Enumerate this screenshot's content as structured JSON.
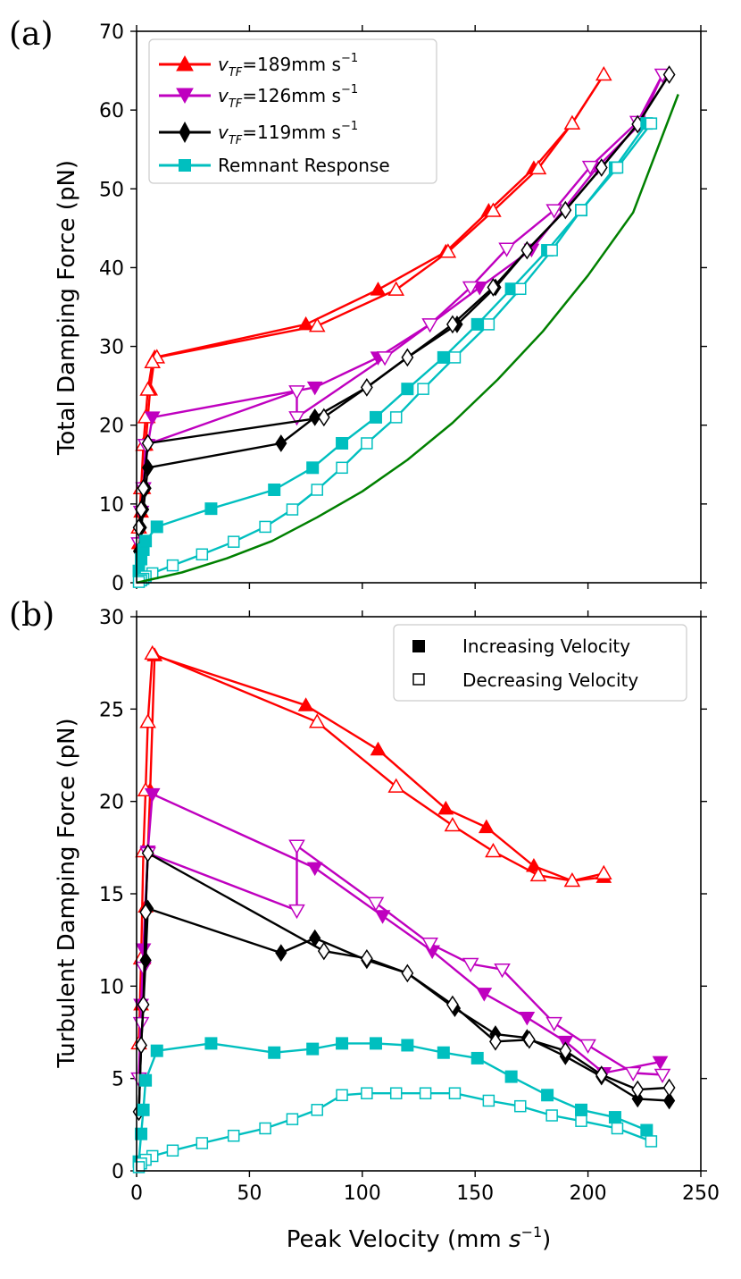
{
  "chart_data": [
    {
      "type": "line",
      "panel_label": "(a)",
      "ylabel": "Total Damping Force (pN)",
      "xlim": [
        0,
        250
      ],
      "ylim": [
        0,
        70
      ],
      "yticks": [
        "0",
        "10",
        "20",
        "30",
        "40",
        "50",
        "60",
        "70"
      ],
      "legend": {
        "location": "upper-left",
        "entries": [
          {
            "label_prefix": "v",
            "label_sub": "TF",
            "label_rest": "=189mm s",
            "label_sup": "−1",
            "color": "#ff0000",
            "marker": "triangle-up"
          },
          {
            "label_prefix": "v",
            "label_sub": "TF",
            "label_rest": "=126mm s",
            "label_sup": "−1",
            "color": "#bf00bf",
            "marker": "triangle-down"
          },
          {
            "label_prefix": "v",
            "label_sub": "TF",
            "label_rest": "=119mm s",
            "label_sup": "−1",
            "color": "#000000",
            "marker": "diamond"
          },
          {
            "label": "Remnant Response",
            "color": "#00bfbf",
            "marker": "square"
          }
        ]
      },
      "series": [
        {
          "name": "v_TF=189 increasing",
          "color": "#ff0000",
          "marker": "triangle-up",
          "fill": "filled",
          "x": [
            1,
            2,
            3,
            4,
            5,
            6,
            8,
            75,
            107,
            137,
            156,
            176,
            193,
            207
          ],
          "y": [
            5,
            9,
            12,
            17.5,
            21,
            24.5,
            28.6,
            32.8,
            37.2,
            42,
            47.2,
            52.6,
            58.3,
            64.5
          ]
        },
        {
          "name": "v_TF=189 decreasing",
          "color": "#ff0000",
          "marker": "triangle-up",
          "fill": "open",
          "x": [
            207,
            193,
            178,
            158,
            138,
            115,
            80,
            9,
            7,
            5,
            4,
            3,
            2,
            1
          ],
          "y": [
            64.5,
            58.3,
            52.6,
            47.2,
            42,
            37.2,
            32.6,
            28.6,
            28,
            24.5,
            21,
            17.5,
            12,
            7
          ]
        },
        {
          "name": "v_TF=126 increasing",
          "color": "#bf00bf",
          "marker": "triangle-down",
          "fill": "filled",
          "x": [
            1,
            2,
            3,
            5,
            7,
            79,
            107,
            130,
            152,
            175,
            204,
            223,
            233
          ],
          "y": [
            5,
            9,
            12,
            17.5,
            21,
            24.8,
            28.6,
            32.8,
            37.5,
            42.3,
            52.7,
            58.2,
            64.5
          ]
        },
        {
          "name": "v_TF=126 decreasing",
          "color": "#bf00bf",
          "marker": "triangle-down",
          "fill": "open",
          "x": [
            233,
            222,
            201,
            185,
            164,
            148,
            130,
            110,
            71,
            71,
            4,
            3,
            2,
            1
          ],
          "y": [
            64.5,
            58.5,
            52.8,
            47.3,
            42.4,
            37.5,
            32.8,
            28.6,
            21,
            24.3,
            17.5,
            12,
            9,
            5
          ]
        },
        {
          "name": "v_TF=119 increasing",
          "color": "#000000",
          "marker": "diamond",
          "fill": "filled",
          "x": [
            1,
            2,
            3,
            4,
            5,
            64,
            79,
            102,
            120,
            142,
            159,
            173,
            190,
            206,
            222,
            236
          ],
          "y": [
            4,
            7,
            9.3,
            12,
            14.6,
            17.7,
            21,
            24.8,
            28.6,
            32.8,
            37.5,
            42.2,
            47.3,
            52.7,
            58.2,
            64.5
          ]
        },
        {
          "name": "v_TF=119 decreasing",
          "color": "#000000",
          "marker": "diamond",
          "fill": "open",
          "x": [
            236,
            222,
            206,
            190,
            173,
            158,
            140,
            120,
            102,
            83,
            5,
            3,
            2,
            1
          ],
          "y": [
            64.5,
            58.2,
            52.7,
            47.3,
            42.2,
            37.5,
            32.8,
            28.6,
            24.8,
            21,
            17.7,
            12,
            9.3,
            7
          ]
        },
        {
          "name": "Remnant increasing",
          "color": "#00bfbf",
          "marker": "square",
          "fill": "filled",
          "x": [
            1,
            2,
            3,
            4,
            9,
            33,
            61,
            78,
            91,
            106,
            120,
            136,
            151,
            166,
            182,
            197,
            212,
            226
          ],
          "y": [
            1.5,
            3,
            4.2,
            5.3,
            7.1,
            9.4,
            11.8,
            14.6,
            17.7,
            21,
            24.6,
            28.6,
            32.8,
            37.3,
            42.2,
            47.3,
            52.7,
            58.3
          ]
        },
        {
          "name": "Remnant decreasing",
          "color": "#00bfbf",
          "marker": "square",
          "fill": "open",
          "x": [
            228,
            213,
            197,
            184,
            170,
            156,
            141,
            127,
            115,
            102,
            91,
            80,
            69,
            57,
            43,
            29,
            16,
            7,
            4,
            3,
            2,
            1
          ],
          "y": [
            58.3,
            52.7,
            47.3,
            42.2,
            37.3,
            32.8,
            28.6,
            24.6,
            21,
            17.7,
            14.6,
            11.8,
            9.3,
            7.1,
            5.2,
            3.6,
            2.2,
            1.2,
            0.8,
            0.5,
            0.3,
            0.1
          ]
        },
        {
          "name": "Reference curve",
          "color": "#008000",
          "marker": "none",
          "fill": "none",
          "x": [
            0,
            20,
            40,
            60,
            80,
            100,
            120,
            140,
            160,
            180,
            200,
            220,
            240
          ],
          "y": [
            0,
            1.3,
            3.1,
            5.3,
            8.3,
            11.6,
            15.6,
            20.3,
            25.8,
            31.9,
            39,
            47,
            62
          ]
        }
      ]
    },
    {
      "type": "line",
      "panel_label": "(b)",
      "xlabel_prefix": "Peak Velocity (mm ",
      "xlabel_var": "s",
      "xlabel_sup": "−1",
      "xlabel_suffix": ")",
      "ylabel": "Turbulent Damping Force (pN)",
      "xlim": [
        0,
        250
      ],
      "ylim": [
        0,
        30
      ],
      "xticks": [
        "0",
        "50",
        "100",
        "150",
        "200",
        "250"
      ],
      "yticks": [
        "0",
        "5",
        "10",
        "15",
        "20",
        "25",
        "30"
      ],
      "legend": {
        "location": "upper-right",
        "entries": [
          {
            "label": "Increasing Velocity",
            "fill": "filled"
          },
          {
            "label": "Decreasing Velocity",
            "fill": "open"
          }
        ]
      },
      "series": [
        {
          "name": "v_TF=189 increasing",
          "color": "#ff0000",
          "marker": "triangle-up",
          "fill": "filled",
          "x": [
            1,
            2,
            3,
            4,
            5,
            6,
            8,
            75,
            107,
            137,
            155,
            176,
            193,
            207
          ],
          "y": [
            6.9,
            9,
            11.5,
            14.3,
            17.3,
            20.6,
            27.9,
            25.2,
            22.8,
            19.6,
            18.6,
            16.5,
            15.7,
            15.9
          ]
        },
        {
          "name": "v_TF=189 decreasing",
          "color": "#ff0000",
          "marker": "triangle-up",
          "fill": "open",
          "x": [
            207,
            193,
            178,
            158,
            140,
            115,
            80,
            7,
            5,
            4,
            3,
            2,
            1
          ],
          "y": [
            16.1,
            15.7,
            16,
            17.3,
            18.7,
            20.8,
            24.3,
            28,
            24.3,
            20.6,
            17.3,
            11.5,
            6.9
          ]
        },
        {
          "name": "v_TF=126 increasing",
          "color": "#bf00bf",
          "marker": "triangle-down",
          "fill": "filled",
          "x": [
            1,
            2,
            3,
            5,
            7,
            79,
            109,
            131,
            154,
            173,
            190,
            207,
            232
          ],
          "y": [
            5,
            9,
            12,
            17.3,
            20.4,
            16.4,
            13.8,
            11.9,
            9.6,
            8.3,
            7,
            5.3,
            5.9
          ]
        },
        {
          "name": "v_TF=126 decreasing",
          "color": "#bf00bf",
          "marker": "triangle-down",
          "fill": "open",
          "x": [
            233,
            220,
            200,
            185,
            162,
            148,
            130,
            106,
            71,
            71,
            5,
            3,
            2,
            1
          ],
          "y": [
            5.2,
            5.3,
            6.8,
            8,
            10.9,
            11.2,
            12.3,
            14.5,
            17.6,
            14.1,
            17.2,
            11,
            8,
            5
          ]
        },
        {
          "name": "v_TF=119 increasing",
          "color": "#000000",
          "marker": "diamond",
          "fill": "filled",
          "x": [
            1,
            2,
            3,
            4,
            5,
            64,
            79,
            102,
            120,
            141,
            159,
            173,
            190,
            206,
            222,
            236
          ],
          "y": [
            3.2,
            6.8,
            9,
            11.4,
            14.2,
            11.8,
            12.6,
            11.4,
            10.7,
            8.8,
            7.4,
            7.2,
            6.2,
            5.1,
            3.9,
            3.8
          ]
        },
        {
          "name": "v_TF=119 decreasing",
          "color": "#000000",
          "marker": "diamond",
          "fill": "open",
          "x": [
            236,
            222,
            206,
            190,
            174,
            159,
            140,
            120,
            102,
            83,
            5,
            4,
            3,
            2,
            1
          ],
          "y": [
            4.5,
            4.4,
            5.2,
            6.5,
            7.1,
            7,
            9,
            10.7,
            11.5,
            11.9,
            17.2,
            14,
            9,
            6.8,
            3.2
          ]
        },
        {
          "name": "Remnant increasing",
          "color": "#00bfbf",
          "marker": "square",
          "fill": "filled",
          "x": [
            1,
            2,
            3,
            4,
            9,
            33,
            61,
            78,
            91,
            106,
            120,
            136,
            151,
            166,
            182,
            197,
            212,
            226
          ],
          "y": [
            0.5,
            2,
            3.3,
            4.9,
            6.5,
            6.9,
            6.4,
            6.6,
            6.9,
            6.9,
            6.8,
            6.4,
            6.1,
            5.1,
            4.1,
            3.3,
            2.9,
            2.2
          ]
        },
        {
          "name": "Remnant decreasing",
          "color": "#00bfbf",
          "marker": "square",
          "fill": "open",
          "x": [
            228,
            213,
            197,
            184,
            170,
            156,
            141,
            128,
            115,
            102,
            91,
            80,
            69,
            57,
            43,
            29,
            16,
            7,
            4,
            2,
            1
          ],
          "y": [
            1.6,
            2.3,
            2.7,
            3,
            3.5,
            3.8,
            4.2,
            4.2,
            4.2,
            4.2,
            4.1,
            3.3,
            2.8,
            2.3,
            1.9,
            1.5,
            1.1,
            0.8,
            0.6,
            0.4,
            0.2
          ]
        }
      ]
    }
  ]
}
